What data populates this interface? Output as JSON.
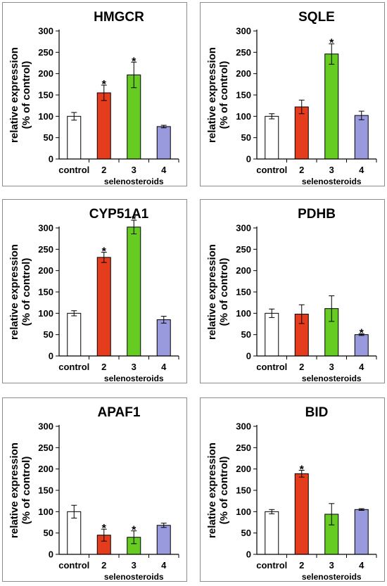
{
  "chart_data": [
    {
      "type": "bar",
      "title": "HMGCR",
      "ylabel": [
        "relative expression",
        "(% of control)"
      ],
      "categories": [
        "control",
        "2",
        "3",
        "4"
      ],
      "group_label": "selenosteroids",
      "ylim": [
        0,
        300
      ],
      "yticks": [
        0,
        50,
        100,
        150,
        200,
        250,
        300
      ],
      "values": [
        100,
        155,
        197,
        76
      ],
      "errors": [
        9,
        18,
        30,
        3
      ],
      "significant": [
        false,
        true,
        true,
        false
      ],
      "significance_marker": "*",
      "colors": [
        "#ffffff",
        "#e63c1e",
        "#66cc22",
        "#9999dd"
      ]
    },
    {
      "type": "bar",
      "title": "SQLE",
      "ylabel": [
        "relative expression",
        "(% of control)"
      ],
      "categories": [
        "control",
        "2",
        "3",
        "4"
      ],
      "group_label": "selenosteroids",
      "ylim": [
        0,
        300
      ],
      "yticks": [
        0,
        50,
        100,
        150,
        200,
        250,
        300
      ],
      "values": [
        100,
        122,
        246,
        102
      ],
      "errors": [
        6,
        16,
        24,
        10
      ],
      "significant": [
        false,
        false,
        true,
        false
      ],
      "significance_marker": "*",
      "colors": [
        "#ffffff",
        "#e63c1e",
        "#66cc22",
        "#9999dd"
      ]
    },
    {
      "type": "bar",
      "title": "CYP51A1",
      "ylabel": [
        "relative expression",
        "(% of control)"
      ],
      "categories": [
        "control",
        "2",
        "3",
        "4"
      ],
      "group_label": "selenosteroids",
      "ylim": [
        0,
        300
      ],
      "yticks": [
        0,
        50,
        100,
        150,
        200,
        250,
        300
      ],
      "values": [
        100,
        231,
        302,
        85
      ],
      "errors": [
        6,
        12,
        16,
        8
      ],
      "significant": [
        false,
        true,
        true,
        false
      ],
      "significance_marker": "*",
      "colors": [
        "#ffffff",
        "#e63c1e",
        "#66cc22",
        "#9999dd"
      ]
    },
    {
      "type": "bar",
      "title": "PDHB",
      "ylabel": [
        "relative expression",
        "(% of control)"
      ],
      "categories": [
        "control",
        "2",
        "3",
        "4"
      ],
      "group_label": "selenosteroids",
      "ylim": [
        0,
        300
      ],
      "yticks": [
        0,
        50,
        100,
        150,
        200,
        250,
        300
      ],
      "values": [
        100,
        98,
        111,
        50
      ],
      "errors": [
        10,
        22,
        30,
        2
      ],
      "significant": [
        false,
        false,
        false,
        true
      ],
      "significance_marker": "*",
      "colors": [
        "#ffffff",
        "#e63c1e",
        "#66cc22",
        "#9999dd"
      ]
    },
    {
      "type": "bar",
      "title": "APAF1",
      "ylabel": [
        "relative expression",
        "(% of control)"
      ],
      "categories": [
        "control",
        "2",
        "3",
        "4"
      ],
      "group_label": "selenosteroids",
      "ylim": [
        0,
        300
      ],
      "yticks": [
        0,
        50,
        100,
        150,
        200,
        250,
        300
      ],
      "values": [
        100,
        45,
        40,
        68
      ],
      "errors": [
        15,
        14,
        15,
        5
      ],
      "significant": [
        false,
        true,
        true,
        false
      ],
      "significance_marker": "*",
      "colors": [
        "#ffffff",
        "#e63c1e",
        "#66cc22",
        "#9999dd"
      ]
    },
    {
      "type": "bar",
      "title": "BID",
      "ylabel": [
        "relative expression",
        "(% of control)"
      ],
      "categories": [
        "control",
        "2",
        "3",
        "4"
      ],
      "group_label": "selenosteroids",
      "ylim": [
        0,
        300
      ],
      "yticks": [
        0,
        50,
        100,
        150,
        200,
        250,
        300
      ],
      "values": [
        100,
        189,
        94,
        105
      ],
      "errors": [
        5,
        8,
        25,
        2
      ],
      "significant": [
        false,
        true,
        false,
        false
      ],
      "significance_marker": "*",
      "colors": [
        "#ffffff",
        "#e63c1e",
        "#66cc22",
        "#9999dd"
      ]
    }
  ]
}
